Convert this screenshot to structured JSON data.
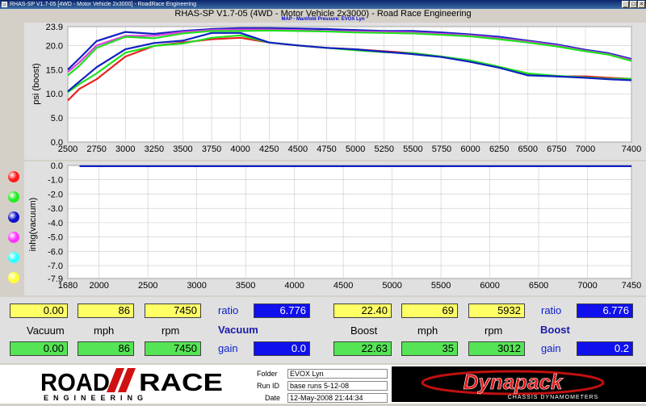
{
  "window": {
    "caption": "RHAS-SP V1.7-05   [4WD - Motor Vehicle 2x3000] - RoadRace Engineering",
    "title": "RHAS-SP V1.7-05   (4WD - Motor Vehicle 2x3000) - Road Race Engineering",
    "chart_subtitle": "MAP - Manifold Pressure: EVOX Lyn"
  },
  "colors": {
    "red": "#e82020",
    "green": "#20e020",
    "blue": "#1020c0",
    "magenta": "#e040e0",
    "cyan": "#40e8f0",
    "yellow": "#ffff40"
  },
  "legend": [
    {
      "name": "red",
      "color": "#ff1a1a"
    },
    {
      "name": "green",
      "color": "#22ee22"
    },
    {
      "name": "blue",
      "color": "#1010cc"
    },
    {
      "name": "magenta",
      "color": "#ff33ff"
    },
    {
      "name": "cyan",
      "color": "#33ffff"
    },
    {
      "name": "yellow",
      "color": "#ffff33"
    }
  ],
  "chart_data": [
    {
      "type": "line",
      "title": "",
      "ylabel": "psi (boost)",
      "xlim": [
        2500,
        7400
      ],
      "ylim": [
        0,
        23.9
      ],
      "x_ticks": [
        "2500",
        "2750",
        "3000",
        "3250",
        "3500",
        "3750",
        "4000",
        "4250",
        "4500",
        "4750",
        "5000",
        "5250",
        "5500",
        "5750",
        "6000",
        "6250",
        "6500",
        "6750",
        "7000",
        "7400"
      ],
      "y_ticks": [
        "0.0",
        "5.0",
        "10.0",
        "15.0",
        "20.0",
        "23.9"
      ],
      "grid": true,
      "series": [
        {
          "color": "red",
          "x": [
            2500,
            2600,
            2750,
            3000,
            3250,
            3500,
            3750,
            4000,
            4250,
            4500,
            4750,
            5000,
            5250,
            5500,
            5750,
            6000,
            6250,
            6500,
            6750,
            7000,
            7200,
            7400
          ],
          "y": [
            8.6,
            11.0,
            13.0,
            17.7,
            19.9,
            20.6,
            21.3,
            21.6,
            20.6,
            20.0,
            19.5,
            19.2,
            18.8,
            18.4,
            17.7,
            16.7,
            15.5,
            14.0,
            13.6,
            13.6,
            13.3,
            13.1
          ]
        },
        {
          "color": "green",
          "x": [
            2500,
            2600,
            2750,
            3000,
            3250,
            3500,
            3750,
            4000,
            4250,
            4500,
            4750,
            5000,
            5250,
            5500,
            5750,
            6000,
            6250,
            6500,
            6750,
            7000,
            7200,
            7400
          ],
          "y": [
            10.3,
            12.0,
            14.2,
            18.5,
            19.9,
            20.4,
            21.6,
            22.1,
            20.6,
            20.0,
            19.5,
            19.0,
            18.6,
            18.4,
            17.7,
            16.9,
            15.6,
            14.2,
            13.7,
            13.4,
            13.1,
            13.1
          ]
        },
        {
          "color": "blue",
          "x": [
            2500,
            2600,
            2750,
            3000,
            3250,
            3500,
            3750,
            4000,
            4250,
            4500,
            4750,
            5000,
            5250,
            5500,
            5750,
            6000,
            6250,
            6500,
            6750,
            7000,
            7200,
            7400
          ],
          "y": [
            10.5,
            12.5,
            15.5,
            19.2,
            20.5,
            21.0,
            22.6,
            22.6,
            20.6,
            20.0,
            19.5,
            19.2,
            18.7,
            18.2,
            17.6,
            16.6,
            15.4,
            13.8,
            13.6,
            13.3,
            13.0,
            12.8
          ]
        },
        {
          "color": "blue",
          "x": [
            2500,
            2600,
            2750,
            3000,
            3250,
            3500,
            3750,
            4000,
            4250,
            4500,
            4750,
            5000,
            5250,
            5500,
            5750,
            6000,
            6250,
            6500,
            6750,
            7000,
            7200,
            7400
          ],
          "y": [
            15.0,
            17.3,
            20.9,
            22.8,
            22.4,
            23.0,
            23.4,
            23.6,
            23.6,
            23.5,
            23.4,
            23.2,
            23.0,
            23.0,
            22.7,
            22.3,
            21.8,
            21.0,
            20.2,
            19.1,
            18.4,
            17.2
          ]
        },
        {
          "color": "magenta",
          "x": [
            2500,
            2600,
            2750,
            3000,
            3250,
            3500,
            3750,
            4000,
            4250,
            4500,
            4750,
            5000,
            5250,
            5500,
            5750,
            6000,
            6250,
            6500,
            6750,
            7000,
            7200,
            7400
          ],
          "y": [
            14.5,
            16.5,
            20.0,
            22.0,
            22.0,
            22.8,
            23.2,
            23.3,
            23.3,
            23.2,
            23.0,
            22.9,
            22.8,
            22.7,
            22.4,
            22.1,
            21.5,
            20.8,
            20.0,
            18.9,
            18.2,
            17.0
          ]
        },
        {
          "color": "green",
          "x": [
            2500,
            2600,
            2750,
            3000,
            3250,
            3500,
            3750,
            4000,
            4250,
            4500,
            4750,
            5000,
            5250,
            5500,
            5750,
            6000,
            6250,
            6500,
            6750,
            7000,
            7200,
            7400
          ],
          "y": [
            13.8,
            15.8,
            19.5,
            21.8,
            21.5,
            22.5,
            23.0,
            23.0,
            23.1,
            23.0,
            22.9,
            22.7,
            22.6,
            22.5,
            22.2,
            21.9,
            21.3,
            20.6,
            19.8,
            18.8,
            18.1,
            16.8
          ]
        }
      ]
    },
    {
      "type": "line",
      "title": "",
      "ylabel": "inhg(vacuum)",
      "xlim": [
        1680,
        7450
      ],
      "ylim": [
        -7.9,
        0.0
      ],
      "x_ticks": [
        "1680",
        "2000",
        "2500",
        "3000",
        "3500",
        "4000",
        "4500",
        "5000",
        "5500",
        "6000",
        "6500",
        "7000",
        "7450"
      ],
      "y_ticks": [
        "0.0",
        "-1.0",
        "-2.0",
        "-3.0",
        "-4.0",
        "-5.0",
        "-6.0",
        "-7.0",
        "-7.9"
      ],
      "grid": true,
      "series": [
        {
          "color": "blue",
          "x": [
            1800,
            7450
          ],
          "y": [
            -0.05,
            -0.05
          ]
        }
      ]
    }
  ],
  "vacuum_panel": {
    "top": {
      "vacuum": "0.00",
      "mph": "86",
      "rpm": "7450"
    },
    "labels": {
      "vacuum": "Vacuum",
      "mph": "mph",
      "rpm": "rpm"
    },
    "bottom": {
      "vacuum": "0.00",
      "mph": "86",
      "rpm": "7450"
    },
    "ratio_label": "ratio",
    "ratio_value": "6.776",
    "title": "Vacuum",
    "gain_label": "gain",
    "gain_value": "0.0"
  },
  "boost_panel": {
    "top": {
      "boost": "22.40",
      "mph": "69",
      "rpm": "5932"
    },
    "labels": {
      "boost": "Boost",
      "mph": "mph",
      "rpm": "rpm"
    },
    "bottom": {
      "boost": "22.63",
      "mph": "35",
      "rpm": "3012"
    },
    "ratio_label": "ratio",
    "ratio_value": "6.776",
    "title": "Boost",
    "gain_label": "gain",
    "gain_value": "0.2"
  },
  "footer": {
    "logo_top": "ROAD",
    "logo_top2": "RACE",
    "logo_bottom": "ENGINEERING",
    "folder_label": "Folder",
    "folder_value": "EVOX Lyn",
    "runid_label": "Run ID",
    "runid_value": "base runs 5-12-08",
    "date_label": "Date",
    "date_value": "12-May-2008  21:44:34",
    "brand": "Dynapack",
    "brand_sub": "CHASSIS DYNAMOMETERS"
  }
}
